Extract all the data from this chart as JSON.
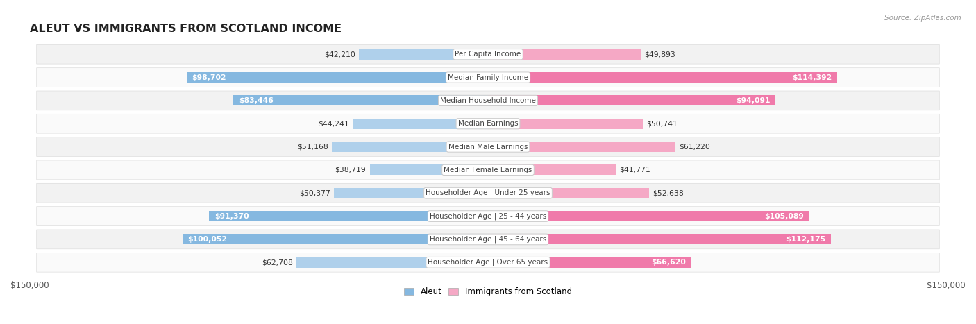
{
  "title": "ALEUT VS IMMIGRANTS FROM SCOTLAND INCOME",
  "source": "Source: ZipAtlas.com",
  "categories": [
    "Per Capita Income",
    "Median Family Income",
    "Median Household Income",
    "Median Earnings",
    "Median Male Earnings",
    "Median Female Earnings",
    "Householder Age | Under 25 years",
    "Householder Age | 25 - 44 years",
    "Householder Age | 45 - 64 years",
    "Householder Age | Over 65 years"
  ],
  "aleut_values": [
    42210,
    98702,
    83446,
    44241,
    51168,
    38719,
    50377,
    91370,
    100052,
    62708
  ],
  "scotland_values": [
    49893,
    114392,
    94091,
    50741,
    61220,
    41771,
    52638,
    105089,
    112175,
    66620
  ],
  "aleut_labels": [
    "$42,210",
    "$98,702",
    "$83,446",
    "$44,241",
    "$51,168",
    "$38,719",
    "$50,377",
    "$91,370",
    "$100,052",
    "$62,708"
  ],
  "scotland_labels": [
    "$49,893",
    "$114,392",
    "$94,091",
    "$50,741",
    "$61,220",
    "$41,771",
    "$52,638",
    "$105,089",
    "$112,175",
    "$66,620"
  ],
  "aleut_color": "#85b8e0",
  "scotland_color": "#f07aaa",
  "aleut_color_light": "#afd0eb",
  "scotland_color_light": "#f5a8c5",
  "max_value": 150000,
  "label_aleut": "Aleut",
  "label_scotland": "Immigrants from Scotland",
  "threshold_inside": 65000,
  "row_bg_colors": [
    "#f2f2f2",
    "#fafafa"
  ]
}
